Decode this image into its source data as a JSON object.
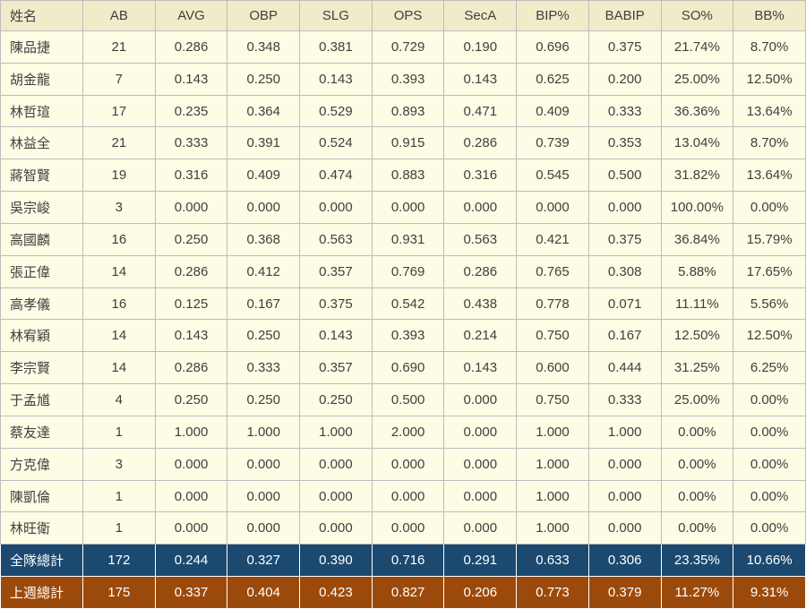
{
  "chart_data": {
    "type": "table",
    "columns": [
      "姓名",
      "AB",
      "AVG",
      "OBP",
      "SLG",
      "OPS",
      "SecA",
      "BIP%",
      "BABIP",
      "SO%",
      "BB%"
    ],
    "rows": [
      [
        "陳品捷",
        "21",
        "0.286",
        "0.348",
        "0.381",
        "0.729",
        "0.190",
        "0.696",
        "0.375",
        "21.74%",
        "8.70%"
      ],
      [
        "胡金龍",
        "7",
        "0.143",
        "0.250",
        "0.143",
        "0.393",
        "0.143",
        "0.625",
        "0.200",
        "25.00%",
        "12.50%"
      ],
      [
        "林哲瑄",
        "17",
        "0.235",
        "0.364",
        "0.529",
        "0.893",
        "0.471",
        "0.409",
        "0.333",
        "36.36%",
        "13.64%"
      ],
      [
        "林益全",
        "21",
        "0.333",
        "0.391",
        "0.524",
        "0.915",
        "0.286",
        "0.739",
        "0.353",
        "13.04%",
        "8.70%"
      ],
      [
        "蔣智賢",
        "19",
        "0.316",
        "0.409",
        "0.474",
        "0.883",
        "0.316",
        "0.545",
        "0.500",
        "31.82%",
        "13.64%"
      ],
      [
        "吳宗峻",
        "3",
        "0.000",
        "0.000",
        "0.000",
        "0.000",
        "0.000",
        "0.000",
        "0.000",
        "100.00%",
        "0.00%"
      ],
      [
        "高國麟",
        "16",
        "0.250",
        "0.368",
        "0.563",
        "0.931",
        "0.563",
        "0.421",
        "0.375",
        "36.84%",
        "15.79%"
      ],
      [
        "張正偉",
        "14",
        "0.286",
        "0.412",
        "0.357",
        "0.769",
        "0.286",
        "0.765",
        "0.308",
        "5.88%",
        "17.65%"
      ],
      [
        "高孝儀",
        "16",
        "0.125",
        "0.167",
        "0.375",
        "0.542",
        "0.438",
        "0.778",
        "0.071",
        "11.11%",
        "5.56%"
      ],
      [
        "林宥穎",
        "14",
        "0.143",
        "0.250",
        "0.143",
        "0.393",
        "0.214",
        "0.750",
        "0.167",
        "12.50%",
        "12.50%"
      ],
      [
        "李宗賢",
        "14",
        "0.286",
        "0.333",
        "0.357",
        "0.690",
        "0.143",
        "0.600",
        "0.444",
        "31.25%",
        "6.25%"
      ],
      [
        "于孟馗",
        "4",
        "0.250",
        "0.250",
        "0.250",
        "0.500",
        "0.000",
        "0.750",
        "0.333",
        "25.00%",
        "0.00%"
      ],
      [
        "蔡友達",
        "1",
        "1.000",
        "1.000",
        "1.000",
        "2.000",
        "0.000",
        "1.000",
        "1.000",
        "0.00%",
        "0.00%"
      ],
      [
        "方克偉",
        "3",
        "0.000",
        "0.000",
        "0.000",
        "0.000",
        "0.000",
        "1.000",
        "0.000",
        "0.00%",
        "0.00%"
      ],
      [
        "陳凱倫",
        "1",
        "0.000",
        "0.000",
        "0.000",
        "0.000",
        "0.000",
        "1.000",
        "0.000",
        "0.00%",
        "0.00%"
      ],
      [
        "林旺衛",
        "1",
        "0.000",
        "0.000",
        "0.000",
        "0.000",
        "0.000",
        "1.000",
        "0.000",
        "0.00%",
        "0.00%"
      ]
    ],
    "total_team": {
      "label": "全隊總計",
      "values": [
        "172",
        "0.244",
        "0.327",
        "0.390",
        "0.716",
        "0.291",
        "0.633",
        "0.306",
        "23.35%",
        "10.66%"
      ]
    },
    "total_week": {
      "label": "上週總計",
      "values": [
        "175",
        "0.337",
        "0.404",
        "0.423",
        "0.827",
        "0.206",
        "0.773",
        "0.379",
        "11.27%",
        "9.31%"
      ]
    }
  },
  "colors": {
    "header_bg": "#f0ebc9",
    "row_bg": "#fdfce4",
    "team_total_bg": "#1b4970",
    "week_total_bg": "#9c4a0b",
    "grid_border": "#bdbdbd",
    "text": "#404040",
    "total_text": "#ffffff"
  }
}
